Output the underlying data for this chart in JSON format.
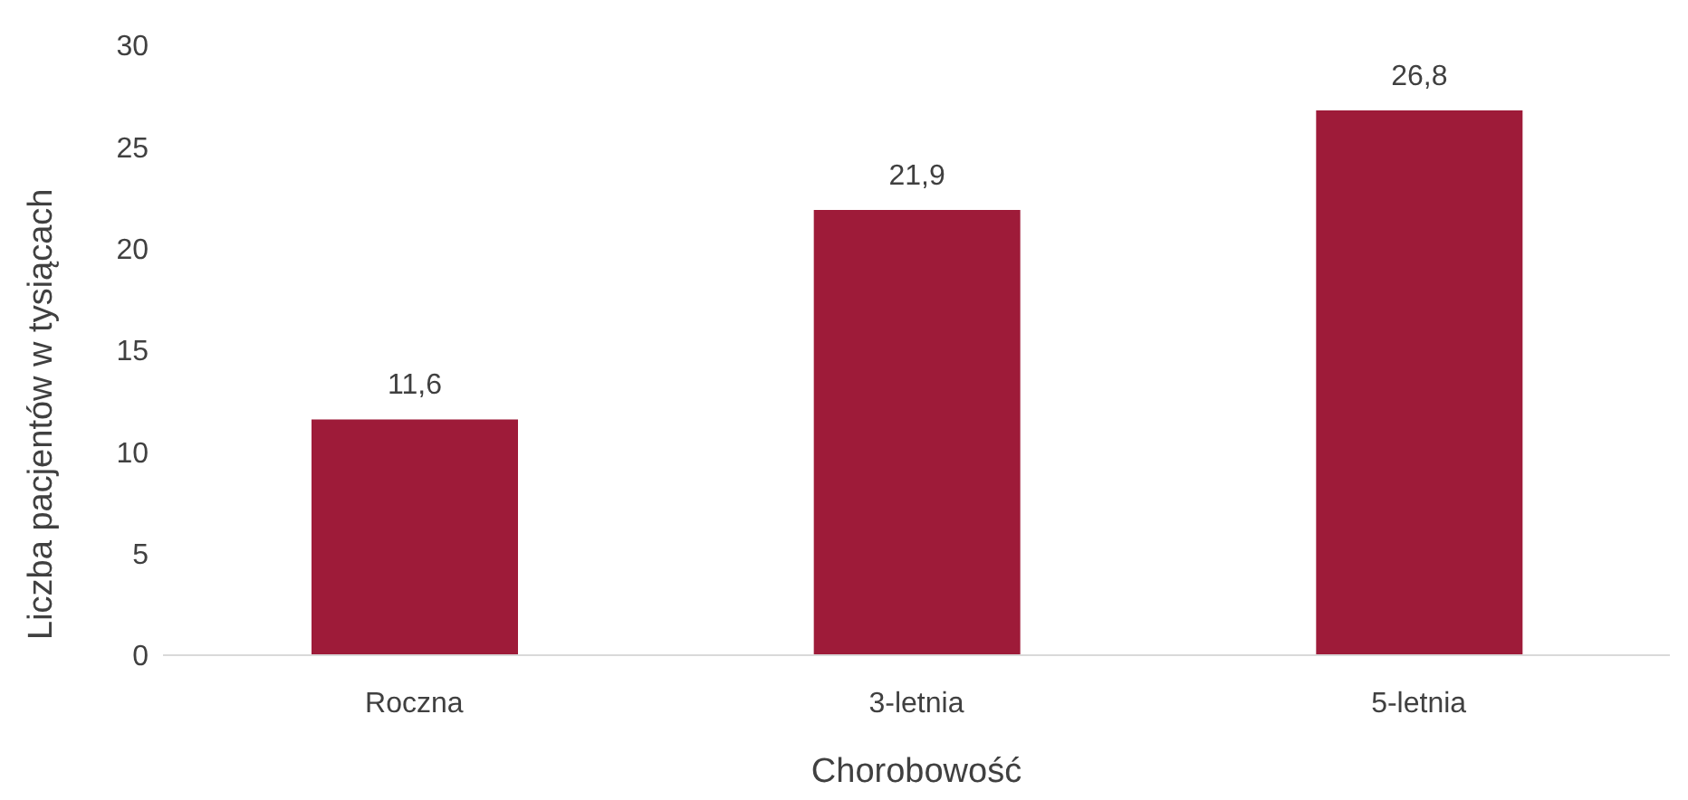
{
  "chart_data": {
    "type": "bar",
    "xlabel": "Chorobowość",
    "ylabel": "Liczba pacjentów w tysiącach",
    "categories": [
      "Roczna",
      "3-letnia",
      "5-letnia"
    ],
    "values": [
      11.6,
      21.9,
      26.8
    ],
    "color": "#9e1b39",
    "value_labels": [
      "11,6",
      "21,9",
      "26,8"
    ],
    "ylim": [
      0,
      30
    ],
    "yticks": [
      0,
      5,
      10,
      15,
      20,
      25,
      30
    ],
    "grid": false,
    "legend": false
  }
}
